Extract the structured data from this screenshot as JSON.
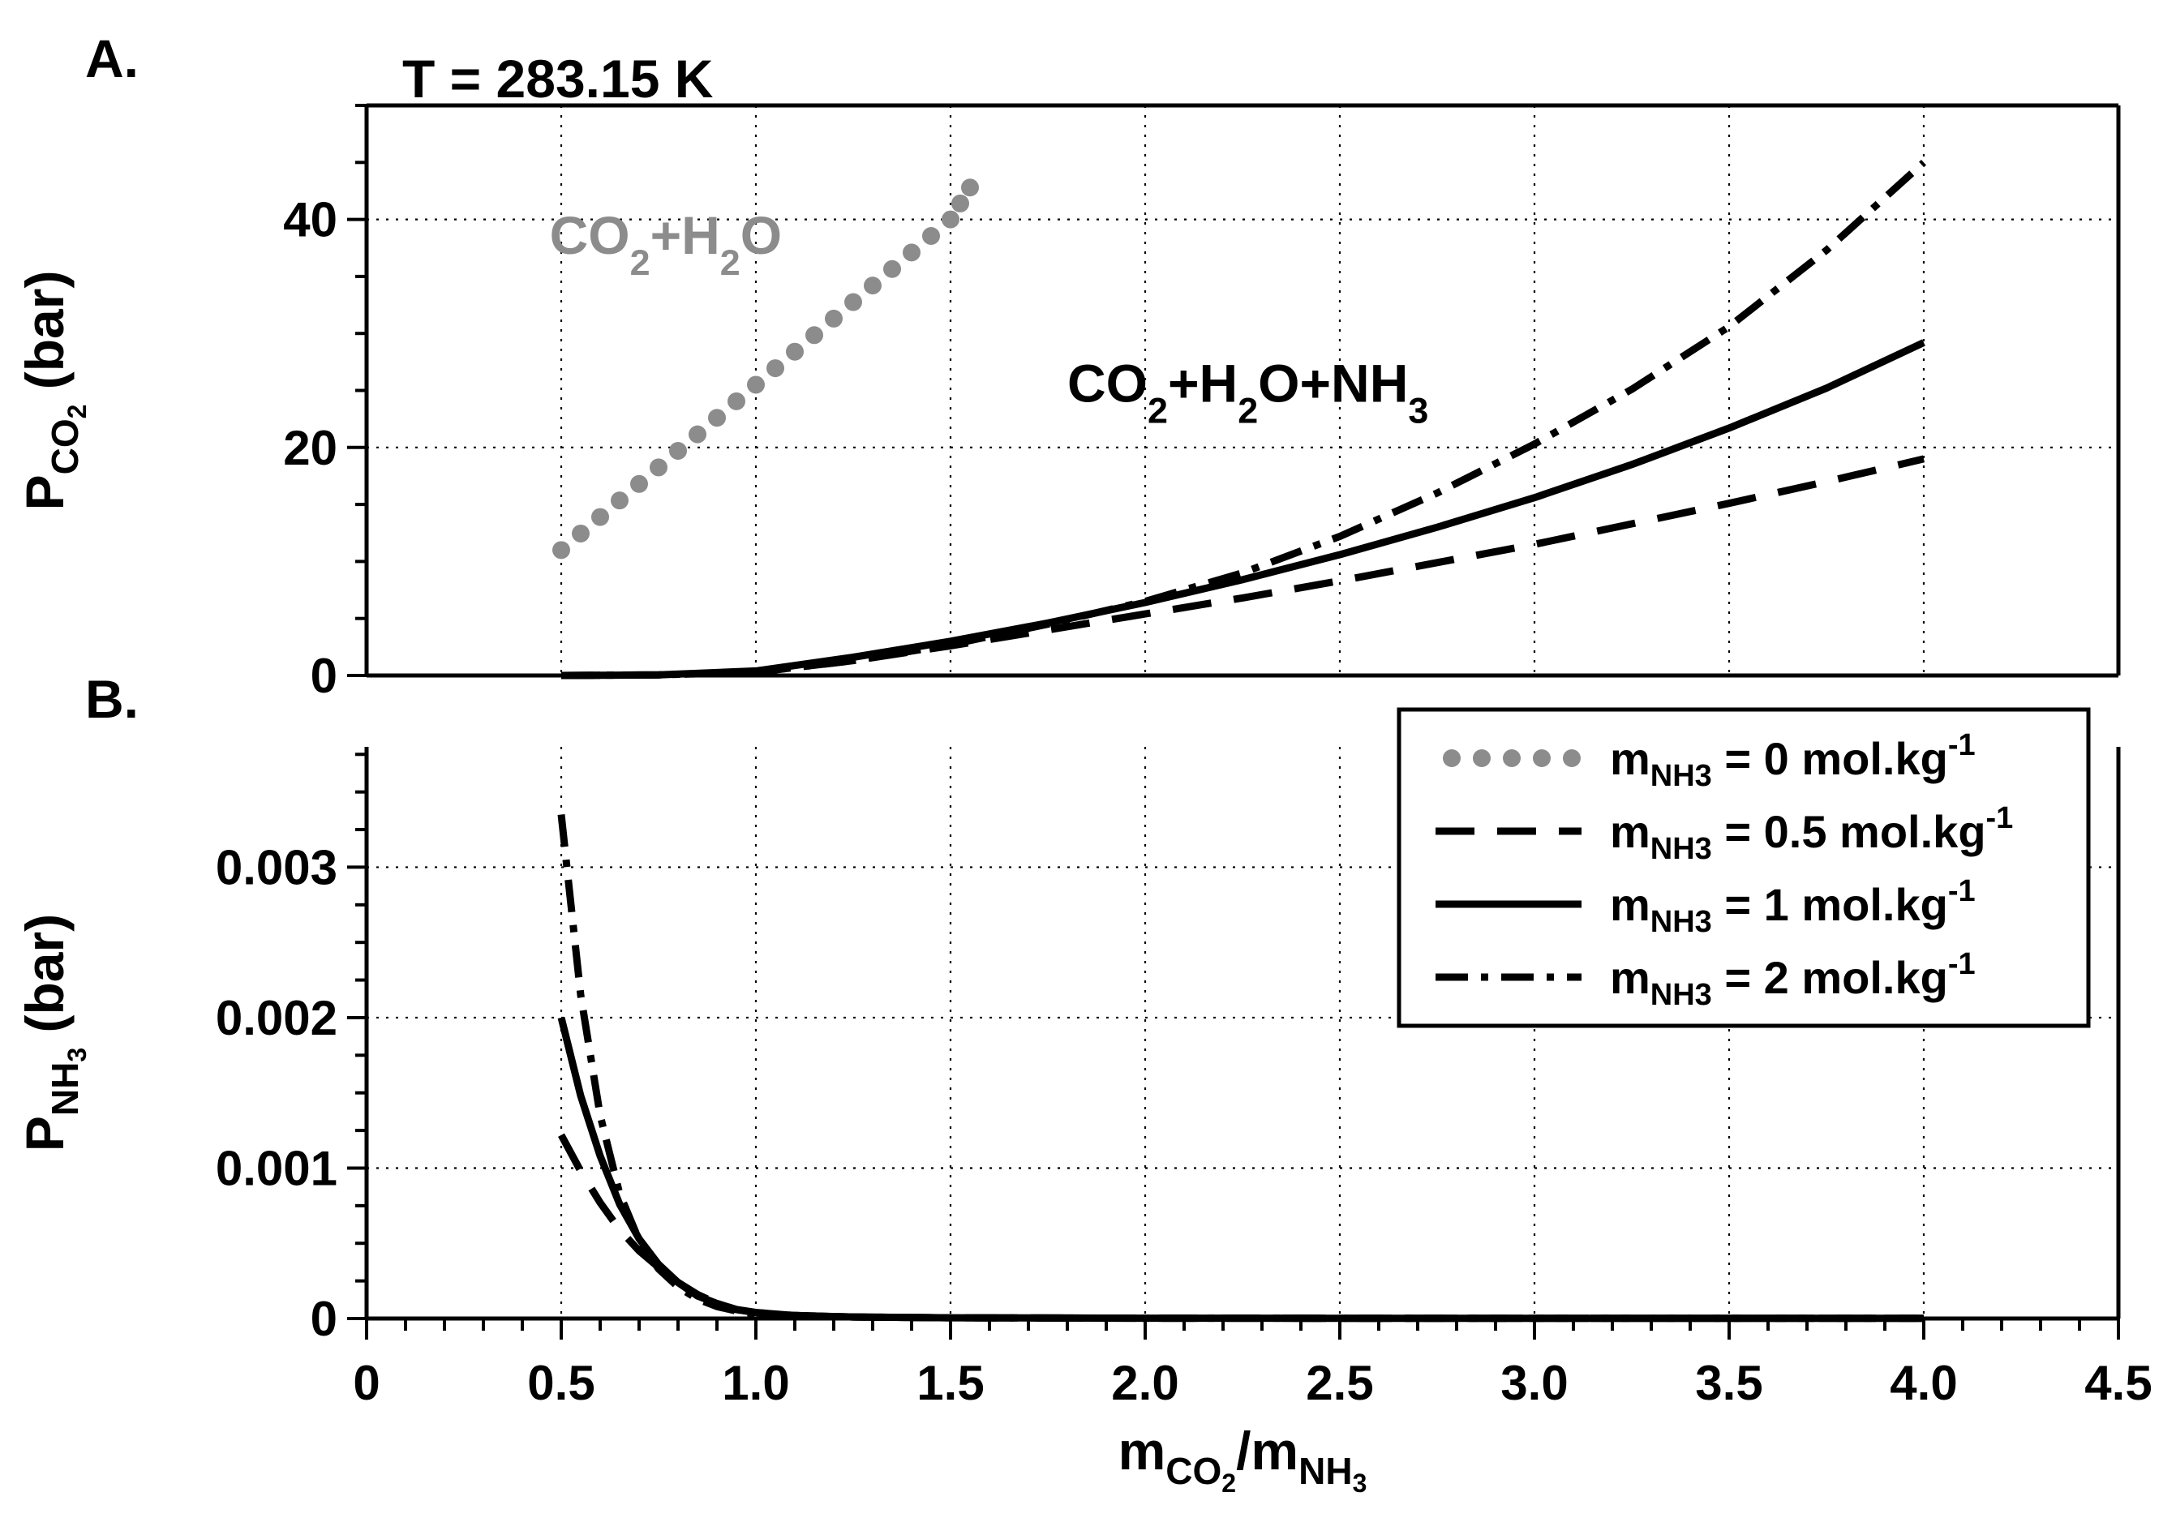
{
  "figure": {
    "temperature_label": "T = 283.15 K",
    "x_axis": {
      "label_main": "m",
      "label_sub1": "CO",
      "label_sub1_sub": "2",
      "label_slash": "/m",
      "label_sub2": "NH",
      "label_sub2_sub": "3"
    }
  },
  "chart_data": [
    {
      "panel": "A.",
      "type": "line",
      "ylabel": {
        "main": "P",
        "sub": "CO",
        "subsub": "2",
        "unit": " (bar)"
      },
      "xlim": [
        0,
        4.5
      ],
      "ylim": [
        0,
        50
      ],
      "xticks": [
        "0",
        "0.5",
        "1.0",
        "1.5",
        "2.0",
        "2.5",
        "3.0",
        "3.5",
        "4.0",
        "4.5"
      ],
      "xtick_values": [
        0,
        0.5,
        1.0,
        1.5,
        2.0,
        2.5,
        3.0,
        3.5,
        4.0,
        4.5
      ],
      "yticks": [
        "0",
        "20",
        "40"
      ],
      "ytick_values": [
        0,
        20,
        40
      ],
      "grid": true,
      "annotations": [
        {
          "id": "co2h2o",
          "parts": [
            [
              "CO",
              "n"
            ],
            [
              "2",
              "s"
            ],
            [
              "+H",
              "n"
            ],
            [
              "2",
              "s"
            ],
            [
              "O",
              "n"
            ]
          ],
          "x": 0.47,
          "y": 37,
          "color": "#8c8c8c"
        },
        {
          "id": "co2h2onh3",
          "parts": [
            [
              "CO",
              "n"
            ],
            [
              "2",
              "s"
            ],
            [
              "+H",
              "n"
            ],
            [
              "2",
              "s"
            ],
            [
              "O+NH",
              "n"
            ],
            [
              "3",
              "s"
            ]
          ],
          "x": 1.8,
          "y": 24,
          "color": "#000000"
        }
      ],
      "series": [
        {
          "name": "0 mol.kg-1",
          "style": "dotted",
          "color": "#8c8c8c",
          "x": [
            0.5,
            0.6,
            0.7,
            0.8,
            0.9,
            1.0,
            1.1,
            1.2,
            1.3,
            1.4,
            1.5,
            1.55
          ],
          "y": [
            11,
            13.9,
            16.8,
            19.7,
            22.6,
            25.5,
            28.4,
            31.3,
            34.2,
            37.1,
            40.0,
            42.8
          ]
        },
        {
          "name": "0.5 mol.kg-1",
          "style": "dashed",
          "color": "#000000",
          "x": [
            0.5,
            0.75,
            1.0,
            1.25,
            1.5,
            1.75,
            2.0,
            2.25,
            2.5,
            2.75,
            3.0,
            3.25,
            3.5,
            3.75,
            4.0
          ],
          "y": [
            0,
            0.05,
            0.3,
            1.3,
            2.6,
            4.0,
            5.4,
            6.8,
            8.3,
            9.9,
            11.5,
            13.3,
            15.1,
            17.0,
            19.0
          ]
        },
        {
          "name": "1 mol.kg-1",
          "style": "solid",
          "color": "#000000",
          "x": [
            0.5,
            0.75,
            1.0,
            1.25,
            1.5,
            1.75,
            2.0,
            2.25,
            2.5,
            2.75,
            3.0,
            3.25,
            3.5,
            3.75,
            4.0
          ],
          "y": [
            0,
            0.05,
            0.4,
            1.6,
            3.0,
            4.6,
            6.4,
            8.4,
            10.6,
            13.0,
            15.6,
            18.5,
            21.7,
            25.2,
            29.2
          ]
        },
        {
          "name": "2 mol.kg-1",
          "style": "dashdot",
          "color": "#000000",
          "x": [
            0.5,
            0.75,
            1.0,
            1.25,
            1.5,
            1.75,
            2.0,
            2.25,
            2.5,
            2.75,
            3.0,
            3.25,
            3.5,
            3.75,
            4.0
          ],
          "y": [
            0,
            0.05,
            0.3,
            1.3,
            2.7,
            4.5,
            6.5,
            9.0,
            12.2,
            16.0,
            20.3,
            25.1,
            30.6,
            37.3,
            45.0
          ]
        }
      ]
    },
    {
      "panel": "B.",
      "type": "line",
      "ylabel": {
        "main": "P",
        "sub": "NH",
        "subsub": "3",
        "unit": " (bar)"
      },
      "xlim": [
        0,
        4.5
      ],
      "ylim": [
        0,
        0.0038
      ],
      "yticks": [
        "0",
        "0.001",
        "0.002",
        "0.003"
      ],
      "ytick_values": [
        0,
        0.001,
        0.002,
        0.003
      ],
      "grid": true,
      "legend": {
        "position": "top-right",
        "entries": [
          {
            "style": "dotted",
            "color": "#8c8c8c",
            "prefix": "m",
            "sub": "NH3",
            "text": " = 0 mol.kg",
            "sup": "-1"
          },
          {
            "style": "dashed",
            "color": "#000000",
            "prefix": "m",
            "sub": "NH3",
            "text": " = 0.5 mol.kg",
            "sup": "-1"
          },
          {
            "style": "solid",
            "color": "#000000",
            "prefix": "m",
            "sub": "NH3",
            "text": " = 1 mol.kg",
            "sup": "-1"
          },
          {
            "style": "dashdot",
            "color": "#000000",
            "prefix": "m",
            "sub": "NH3",
            "text": " = 2 mol.kg",
            "sup": "-1"
          }
        ]
      },
      "series": [
        {
          "name": "0.5 mol.kg-1",
          "style": "dashed",
          "color": "#000000",
          "x": [
            0.5,
            0.55,
            0.6,
            0.65,
            0.7,
            0.75,
            0.8,
            0.85,
            0.9,
            0.95,
            1.0,
            1.1,
            1.25,
            1.5,
            2.0,
            3.0,
            4.0
          ],
          "y": [
            0.00122,
            0.00098,
            0.00077,
            0.00059,
            0.00045,
            0.00034,
            0.00024,
            0.00016,
            0.0001,
            6e-05,
            4e-05,
            2e-05,
            1e-05,
            5e-06,
            2e-06,
            1e-06,
            1e-06
          ]
        },
        {
          "name": "1 mol.kg-1",
          "style": "solid",
          "color": "#000000",
          "x": [
            0.5,
            0.55,
            0.6,
            0.65,
            0.7,
            0.75,
            0.8,
            0.85,
            0.9,
            0.95,
            1.0,
            1.1,
            1.25,
            1.5,
            2.0,
            3.0,
            4.0
          ],
          "y": [
            0.002,
            0.00148,
            0.00108,
            0.00076,
            0.00053,
            0.00036,
            0.00024,
            0.00015,
            0.0001,
            6e-05,
            4e-05,
            2e-05,
            1e-05,
            5e-06,
            2e-06,
            1e-06,
            1e-06
          ]
        },
        {
          "name": "2 mol.kg-1",
          "style": "dashdot",
          "color": "#000000",
          "x": [
            0.5,
            0.55,
            0.6,
            0.65,
            0.7,
            0.75,
            0.8,
            0.85,
            0.9,
            0.95,
            1.0,
            1.1,
            1.25,
            1.5,
            2.0,
            3.0,
            4.0
          ],
          "y": [
            0.00335,
            0.00215,
            0.00135,
            0.00083,
            0.00052,
            0.00033,
            0.00021,
            0.00013,
            8e-05,
            5e-05,
            3e-05,
            2e-05,
            1e-05,
            5e-06,
            2e-06,
            1e-06,
            1e-06
          ]
        }
      ]
    }
  ]
}
